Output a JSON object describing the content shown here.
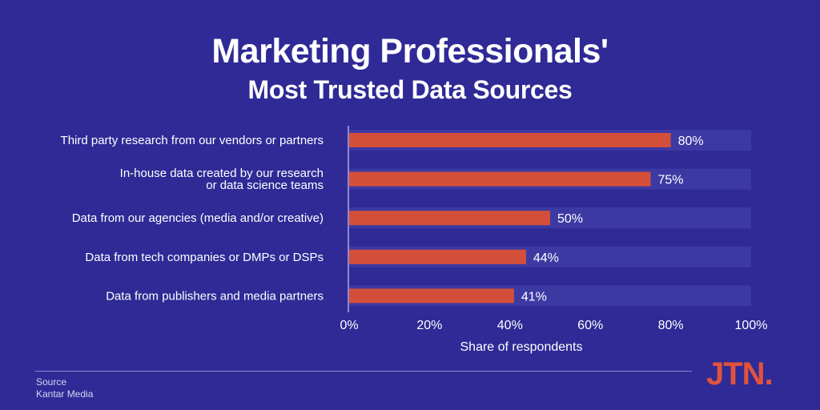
{
  "title_line1": "Marketing Professionals'",
  "title_line2": "Most Trusted Data Sources",
  "source": {
    "label": "Source",
    "value": "Kantar Media"
  },
  "logo": "JTN.",
  "colors": {
    "background": "#2f2a96",
    "bar": "#d44f3a",
    "track": "#3d39a3",
    "axis": "#8e89d2"
  },
  "chart_data": {
    "type": "bar",
    "orientation": "horizontal",
    "title": "Marketing Professionals' Most Trusted Data Sources",
    "xlabel": "Share of respondents",
    "ylabel": "",
    "xlim": [
      0,
      100
    ],
    "xticks": [
      "0%",
      "20%",
      "40%",
      "60%",
      "80%",
      "100%"
    ],
    "grid": false,
    "categories": [
      [
        "Third party research from our vendors or partners"
      ],
      [
        "In-house data created by our research",
        "or data science teams"
      ],
      [
        "Data from our agencies (media and/or creative)"
      ],
      [
        "Data from tech companies or DMPs or DSPs"
      ],
      [
        "Data from publishers and media partners"
      ]
    ],
    "values": [
      80,
      75,
      50,
      44,
      41
    ],
    "value_labels": [
      "80%",
      "75%",
      "50%",
      "44%",
      "41%"
    ]
  }
}
